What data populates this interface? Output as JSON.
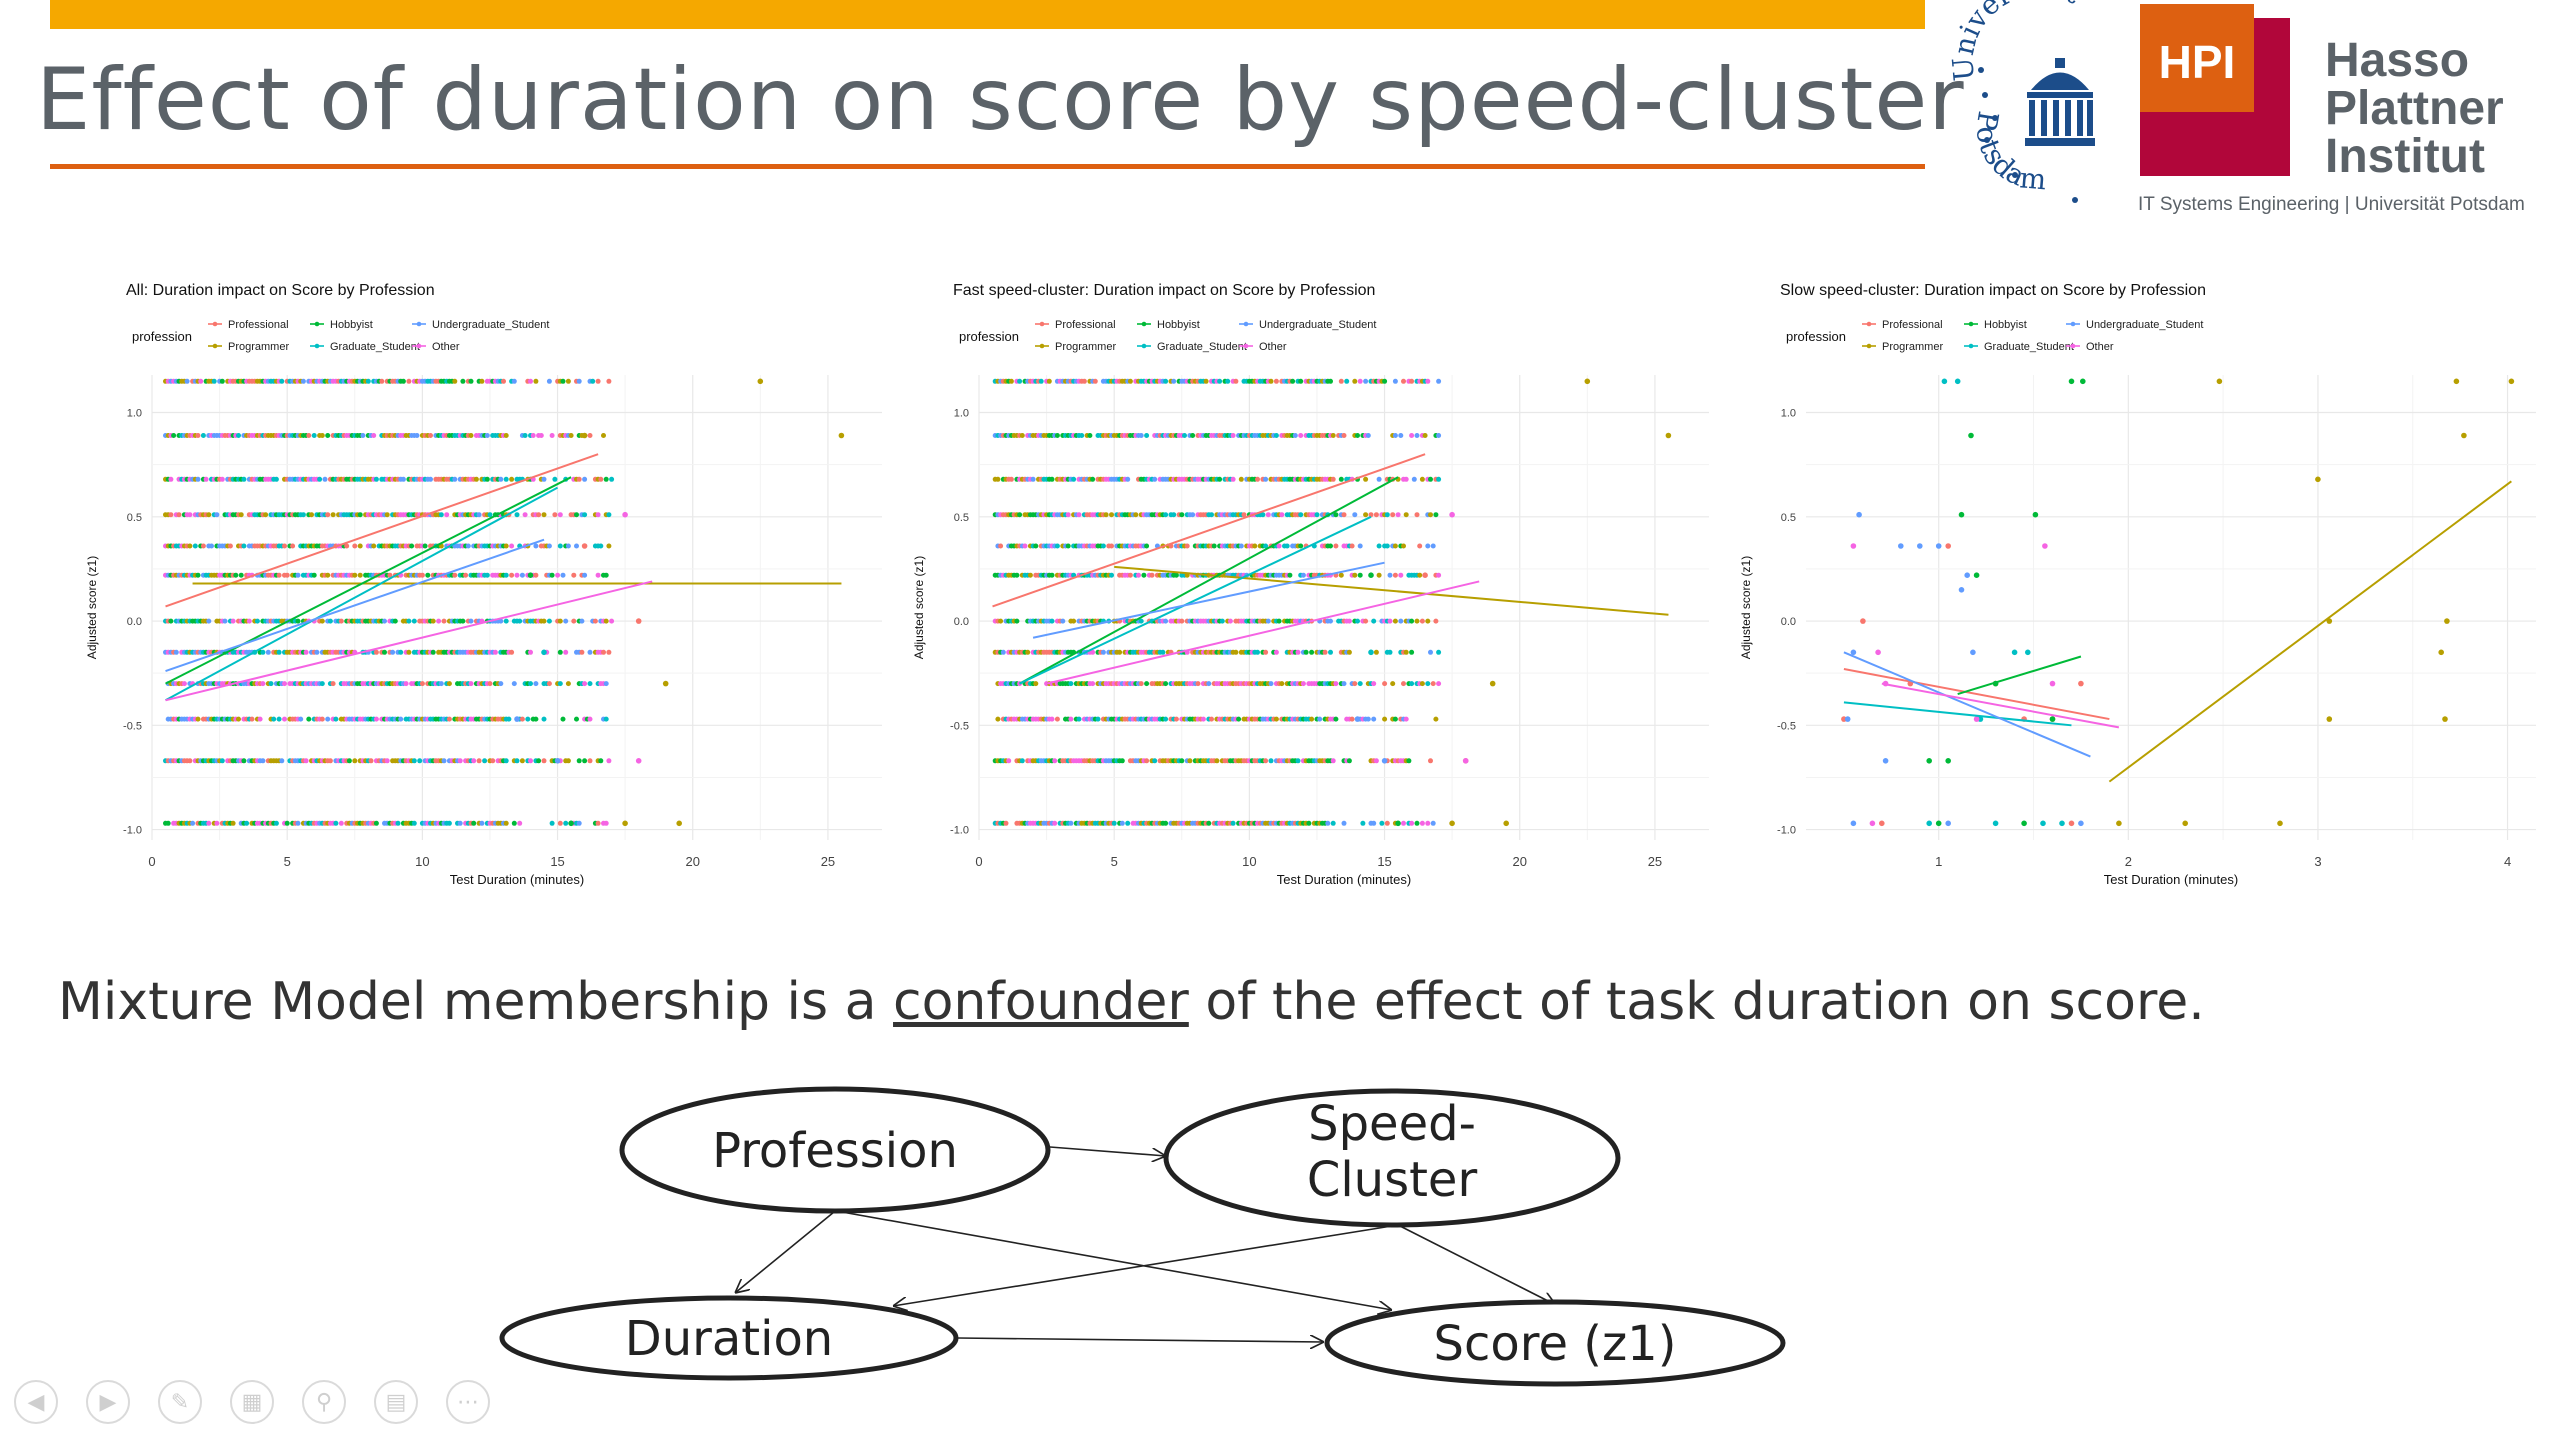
{
  "slide": {
    "title": "Effect of duration on score by speed-cluster",
    "statement_before": "Mixture Model membership is a ",
    "statement_link": "confounder",
    "statement_after": " of the effect of task duration on score."
  },
  "logos": {
    "up_arc_top": "Universität",
    "up_arc_bottom": "Potsdam",
    "hpi_badge": "HPI",
    "hpi_line1": "Hasso",
    "hpi_line2": "Plattner",
    "hpi_line3": "Institut",
    "hpi_tagline": "IT Systems Engineering | Universität Potsdam"
  },
  "colors": {
    "Professional": "#f8766d",
    "Programmer": "#b79f00",
    "Hobbyist": "#00ba38",
    "Graduate_Student": "#00bfc4",
    "Undergraduate_Student": "#619cff",
    "Other": "#f564e3",
    "accent_yellow": "#f5a800",
    "accent_orange": "#dd6011",
    "hpi_red": "#b1063a"
  },
  "chart_data": [
    {
      "type": "scatter",
      "title": "All: Duration impact on Score by Profession",
      "xlabel": "Test Duration (minutes)",
      "ylabel": "Adjusted score (z1)",
      "legend_title": "profession",
      "legend_position": "top",
      "xlim": [
        0,
        27
      ],
      "ylim": [
        -1.05,
        1.18
      ],
      "xticks": [
        0,
        5,
        10,
        15,
        20,
        25
      ],
      "xtick_labels": [
        "0",
        "5",
        "10",
        "15",
        "20",
        "25"
      ],
      "yticks": [
        -1.0,
        -0.5,
        0.0,
        0.5,
        1.0
      ],
      "ytick_labels": [
        "-1.0",
        "-0.5",
        "0.0",
        "0.5",
        "1.0"
      ],
      "score_levels": [
        1.15,
        0.89,
        0.68,
        0.51,
        0.36,
        0.22,
        0.0,
        -0.15,
        -0.3,
        -0.47,
        -0.67,
        -0.97
      ],
      "dense_x": [
        0.5,
        17
      ],
      "series": [
        {
          "name": "Professional",
          "fit": [
            [
              0.5,
              0.07
            ],
            [
              16.5,
              0.8
            ]
          ],
          "outliers": [
            [
              18,
              0.0
            ],
            [
              16,
              0.36
            ]
          ]
        },
        {
          "name": "Programmer",
          "fit": [
            [
              1.5,
              0.18
            ],
            [
              25.5,
              0.18
            ]
          ],
          "outliers": [
            [
              22.5,
              1.15
            ],
            [
              25.5,
              0.89
            ],
            [
              19,
              -0.3
            ],
            [
              17.5,
              -0.97
            ],
            [
              19.5,
              -0.97
            ],
            [
              16,
              0.89
            ]
          ]
        },
        {
          "name": "Hobbyist",
          "fit": [
            [
              0.5,
              -0.3
            ],
            [
              15.5,
              0.69
            ]
          ],
          "outliers": [
            [
              15.5,
              -0.97
            ],
            [
              14,
              0.22
            ]
          ]
        },
        {
          "name": "Graduate_Student",
          "fit": [
            [
              0.5,
              -0.38
            ],
            [
              15,
              0.64
            ]
          ],
          "outliers": [
            [
              14.5,
              -0.15
            ]
          ]
        },
        {
          "name": "Undergraduate_Student",
          "fit": [
            [
              0.5,
              -0.24
            ],
            [
              14.5,
              0.39
            ]
          ],
          "outliers": [
            [
              13.5,
              -0.47
            ],
            [
              15,
              -0.67
            ]
          ]
        },
        {
          "name": "Other",
          "fit": [
            [
              0.5,
              -0.38
            ],
            [
              18.5,
              0.19
            ]
          ],
          "outliers": [
            [
              18,
              -0.67
            ],
            [
              17.5,
              0.51
            ]
          ]
        }
      ]
    },
    {
      "type": "scatter",
      "title": "Fast speed-cluster: Duration impact on Score by Profession",
      "xlabel": "Test Duration (minutes)",
      "ylabel": "Adjusted score (z1)",
      "legend_title": "profession",
      "legend_position": "top",
      "xlim": [
        0,
        27
      ],
      "ylim": [
        -1.05,
        1.18
      ],
      "xticks": [
        0,
        5,
        10,
        15,
        20,
        25
      ],
      "xtick_labels": [
        "0",
        "5",
        "10",
        "15",
        "20",
        "25"
      ],
      "yticks": [
        -1.0,
        -0.5,
        0.0,
        0.5,
        1.0
      ],
      "ytick_labels": [
        "-1.0",
        "-0.5",
        "0.0",
        "0.5",
        "1.0"
      ],
      "score_levels": [
        1.15,
        0.89,
        0.68,
        0.51,
        0.36,
        0.22,
        0.0,
        -0.15,
        -0.3,
        -0.47,
        -0.67,
        -0.97
      ],
      "dense_x": [
        0.6,
        17
      ],
      "series": [
        {
          "name": "Professional",
          "fit": [
            [
              0.5,
              0.07
            ],
            [
              16.5,
              0.8
            ]
          ],
          "outliers": [
            [
              18,
              -0.67
            ],
            [
              16.5,
              0.22
            ]
          ]
        },
        {
          "name": "Programmer",
          "fit": [
            [
              5,
              0.26
            ],
            [
              25.5,
              0.03
            ]
          ],
          "outliers": [
            [
              22.5,
              1.15
            ],
            [
              25.5,
              0.89
            ],
            [
              19,
              -0.3
            ],
            [
              17.5,
              -0.97
            ],
            [
              19.5,
              -0.97
            ]
          ]
        },
        {
          "name": "Hobbyist",
          "fit": [
            [
              1.5,
              -0.3
            ],
            [
              15.5,
              0.69
            ]
          ],
          "outliers": [
            [
              15.5,
              -0.97
            ],
            [
              14.5,
              0.22
            ]
          ]
        },
        {
          "name": "Graduate_Student",
          "fit": [
            [
              1.5,
              -0.3
            ],
            [
              14.5,
              0.5
            ]
          ],
          "outliers": [
            [
              14.5,
              -0.15
            ]
          ]
        },
        {
          "name": "Undergraduate_Student",
          "fit": [
            [
              2,
              -0.08
            ],
            [
              15,
              0.28
            ]
          ],
          "outliers": [
            [
              14,
              -0.47
            ],
            [
              15,
              -0.67
            ]
          ]
        },
        {
          "name": "Other",
          "fit": [
            [
              2.5,
              -0.3
            ],
            [
              18.5,
              0.19
            ]
          ],
          "outliers": [
            [
              18,
              -0.67
            ],
            [
              17.5,
              0.51
            ]
          ]
        }
      ]
    },
    {
      "type": "scatter",
      "title": "Slow speed-cluster: Duration impact on Score by Profession",
      "xlabel": "Test Duration (minutes)",
      "ylabel": "Adjusted score (z1)",
      "legend_title": "profession",
      "legend_position": "top",
      "xlim": [
        0.3,
        4.15
      ],
      "ylim": [
        -1.05,
        1.18
      ],
      "xticks": [
        1,
        2,
        3,
        4
      ],
      "xtick_labels": [
        "1",
        "2",
        "3",
        "4"
      ],
      "yticks": [
        -1.0,
        -0.5,
        0.0,
        0.5,
        1.0
      ],
      "ytick_labels": [
        "-1.0",
        "-0.5",
        "0.0",
        "0.5",
        "1.0"
      ],
      "series": [
        {
          "name": "Professional",
          "fit": [
            [
              0.5,
              -0.23
            ],
            [
              1.9,
              -0.47
            ]
          ],
          "points": [
            [
              0.5,
              -0.47
            ],
            [
              0.6,
              0.0
            ],
            [
              0.7,
              -0.97
            ],
            [
              0.85,
              -0.3
            ],
            [
              1.05,
              0.36
            ],
            [
              1.3,
              -0.3
            ],
            [
              1.45,
              -0.47
            ],
            [
              1.6,
              -0.47
            ],
            [
              1.7,
              -0.97
            ],
            [
              1.75,
              -0.3
            ]
          ]
        },
        {
          "name": "Programmer",
          "fit": [
            [
              1.9,
              -0.77
            ],
            [
              4.02,
              0.67
            ]
          ],
          "points": [
            [
              2.48,
              1.15
            ],
            [
              3.73,
              1.15
            ],
            [
              4.02,
              1.15
            ],
            [
              3.77,
              0.89
            ],
            [
              3.0,
              0.68
            ],
            [
              3.06,
              0.0
            ],
            [
              3.68,
              0.0
            ],
            [
              3.65,
              -0.15
            ],
            [
              3.06,
              -0.47
            ],
            [
              3.67,
              -0.47
            ],
            [
              2.3,
              -0.97
            ],
            [
              2.8,
              -0.97
            ],
            [
              1.95,
              -0.97
            ]
          ]
        },
        {
          "name": "Hobbyist",
          "fit": [
            [
              1.1,
              -0.35
            ],
            [
              1.75,
              -0.17
            ]
          ],
          "points": [
            [
              1.7,
              1.15
            ],
            [
              1.76,
              1.15
            ],
            [
              1.17,
              0.89
            ],
            [
              1.12,
              0.51
            ],
            [
              1.51,
              0.51
            ],
            [
              1.2,
              0.22
            ],
            [
              1.3,
              -0.3
            ],
            [
              0.95,
              -0.67
            ],
            [
              1.05,
              -0.67
            ],
            [
              1.6,
              -0.47
            ],
            [
              1.0,
              -0.97
            ],
            [
              1.45,
              -0.97
            ]
          ]
        },
        {
          "name": "Graduate_Student",
          "fit": [
            [
              0.5,
              -0.39
            ],
            [
              1.7,
              -0.5
            ]
          ],
          "points": [
            [
              1.03,
              1.15
            ],
            [
              1.1,
              1.15
            ],
            [
              1.4,
              -0.15
            ],
            [
              1.47,
              -0.15
            ],
            [
              1.22,
              -0.47
            ],
            [
              0.95,
              -0.97
            ],
            [
              1.3,
              -0.97
            ],
            [
              1.55,
              -0.97
            ],
            [
              1.65,
              -0.97
            ]
          ]
        },
        {
          "name": "Undergraduate_Student",
          "fit": [
            [
              0.5,
              -0.15
            ],
            [
              1.8,
              -0.65
            ]
          ],
          "points": [
            [
              0.58,
              0.51
            ],
            [
              0.8,
              0.36
            ],
            [
              0.9,
              0.36
            ],
            [
              1.0,
              0.36
            ],
            [
              1.15,
              0.22
            ],
            [
              1.12,
              0.15
            ],
            [
              0.55,
              -0.15
            ],
            [
              1.18,
              -0.15
            ],
            [
              0.72,
              -0.67
            ],
            [
              0.52,
              -0.47
            ],
            [
              0.55,
              -0.97
            ],
            [
              1.05,
              -0.97
            ],
            [
              1.75,
              -0.97
            ]
          ]
        },
        {
          "name": "Other",
          "fit": [
            [
              0.7,
              -0.3
            ],
            [
              1.95,
              -0.51
            ]
          ],
          "points": [
            [
              0.55,
              0.36
            ],
            [
              1.56,
              0.36
            ],
            [
              0.68,
              -0.15
            ],
            [
              0.72,
              -0.3
            ],
            [
              1.6,
              -0.3
            ],
            [
              1.2,
              -0.47
            ],
            [
              0.65,
              -0.97
            ]
          ]
        }
      ]
    }
  ],
  "dag": {
    "nodes": [
      "Profession",
      "Speed-",
      "Cluster",
      "Duration",
      "Score (z1)"
    ]
  },
  "nav": [
    "prev-icon",
    "next-icon",
    "pen-icon",
    "slides-icon",
    "zoom-icon",
    "subtitles-icon",
    "more-icon"
  ]
}
